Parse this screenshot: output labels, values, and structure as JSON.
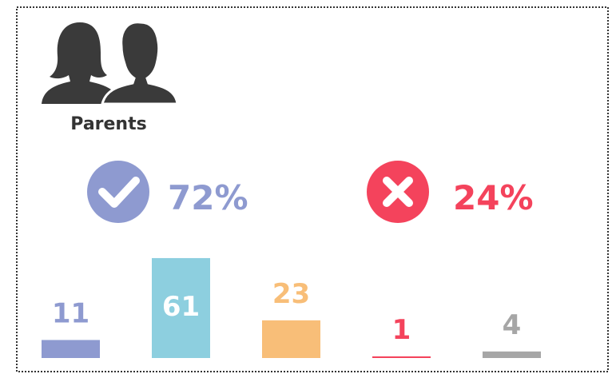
{
  "chart_data": {
    "type": "bar",
    "title": "Parents",
    "summary": {
      "values": [
        72,
        24
      ],
      "value_labels": [
        "72%",
        "24%"
      ],
      "colors": [
        "#8e9ad0",
        "#f4435c"
      ]
    },
    "categories": [
      null,
      null,
      null,
      null,
      null
    ],
    "values": [
      11,
      61,
      23,
      1,
      4
    ],
    "colors": [
      "#8e9ad0",
      "#8dcfdf",
      "#f8be78",
      "#f4435c",
      "#a6a6a6"
    ]
  }
}
